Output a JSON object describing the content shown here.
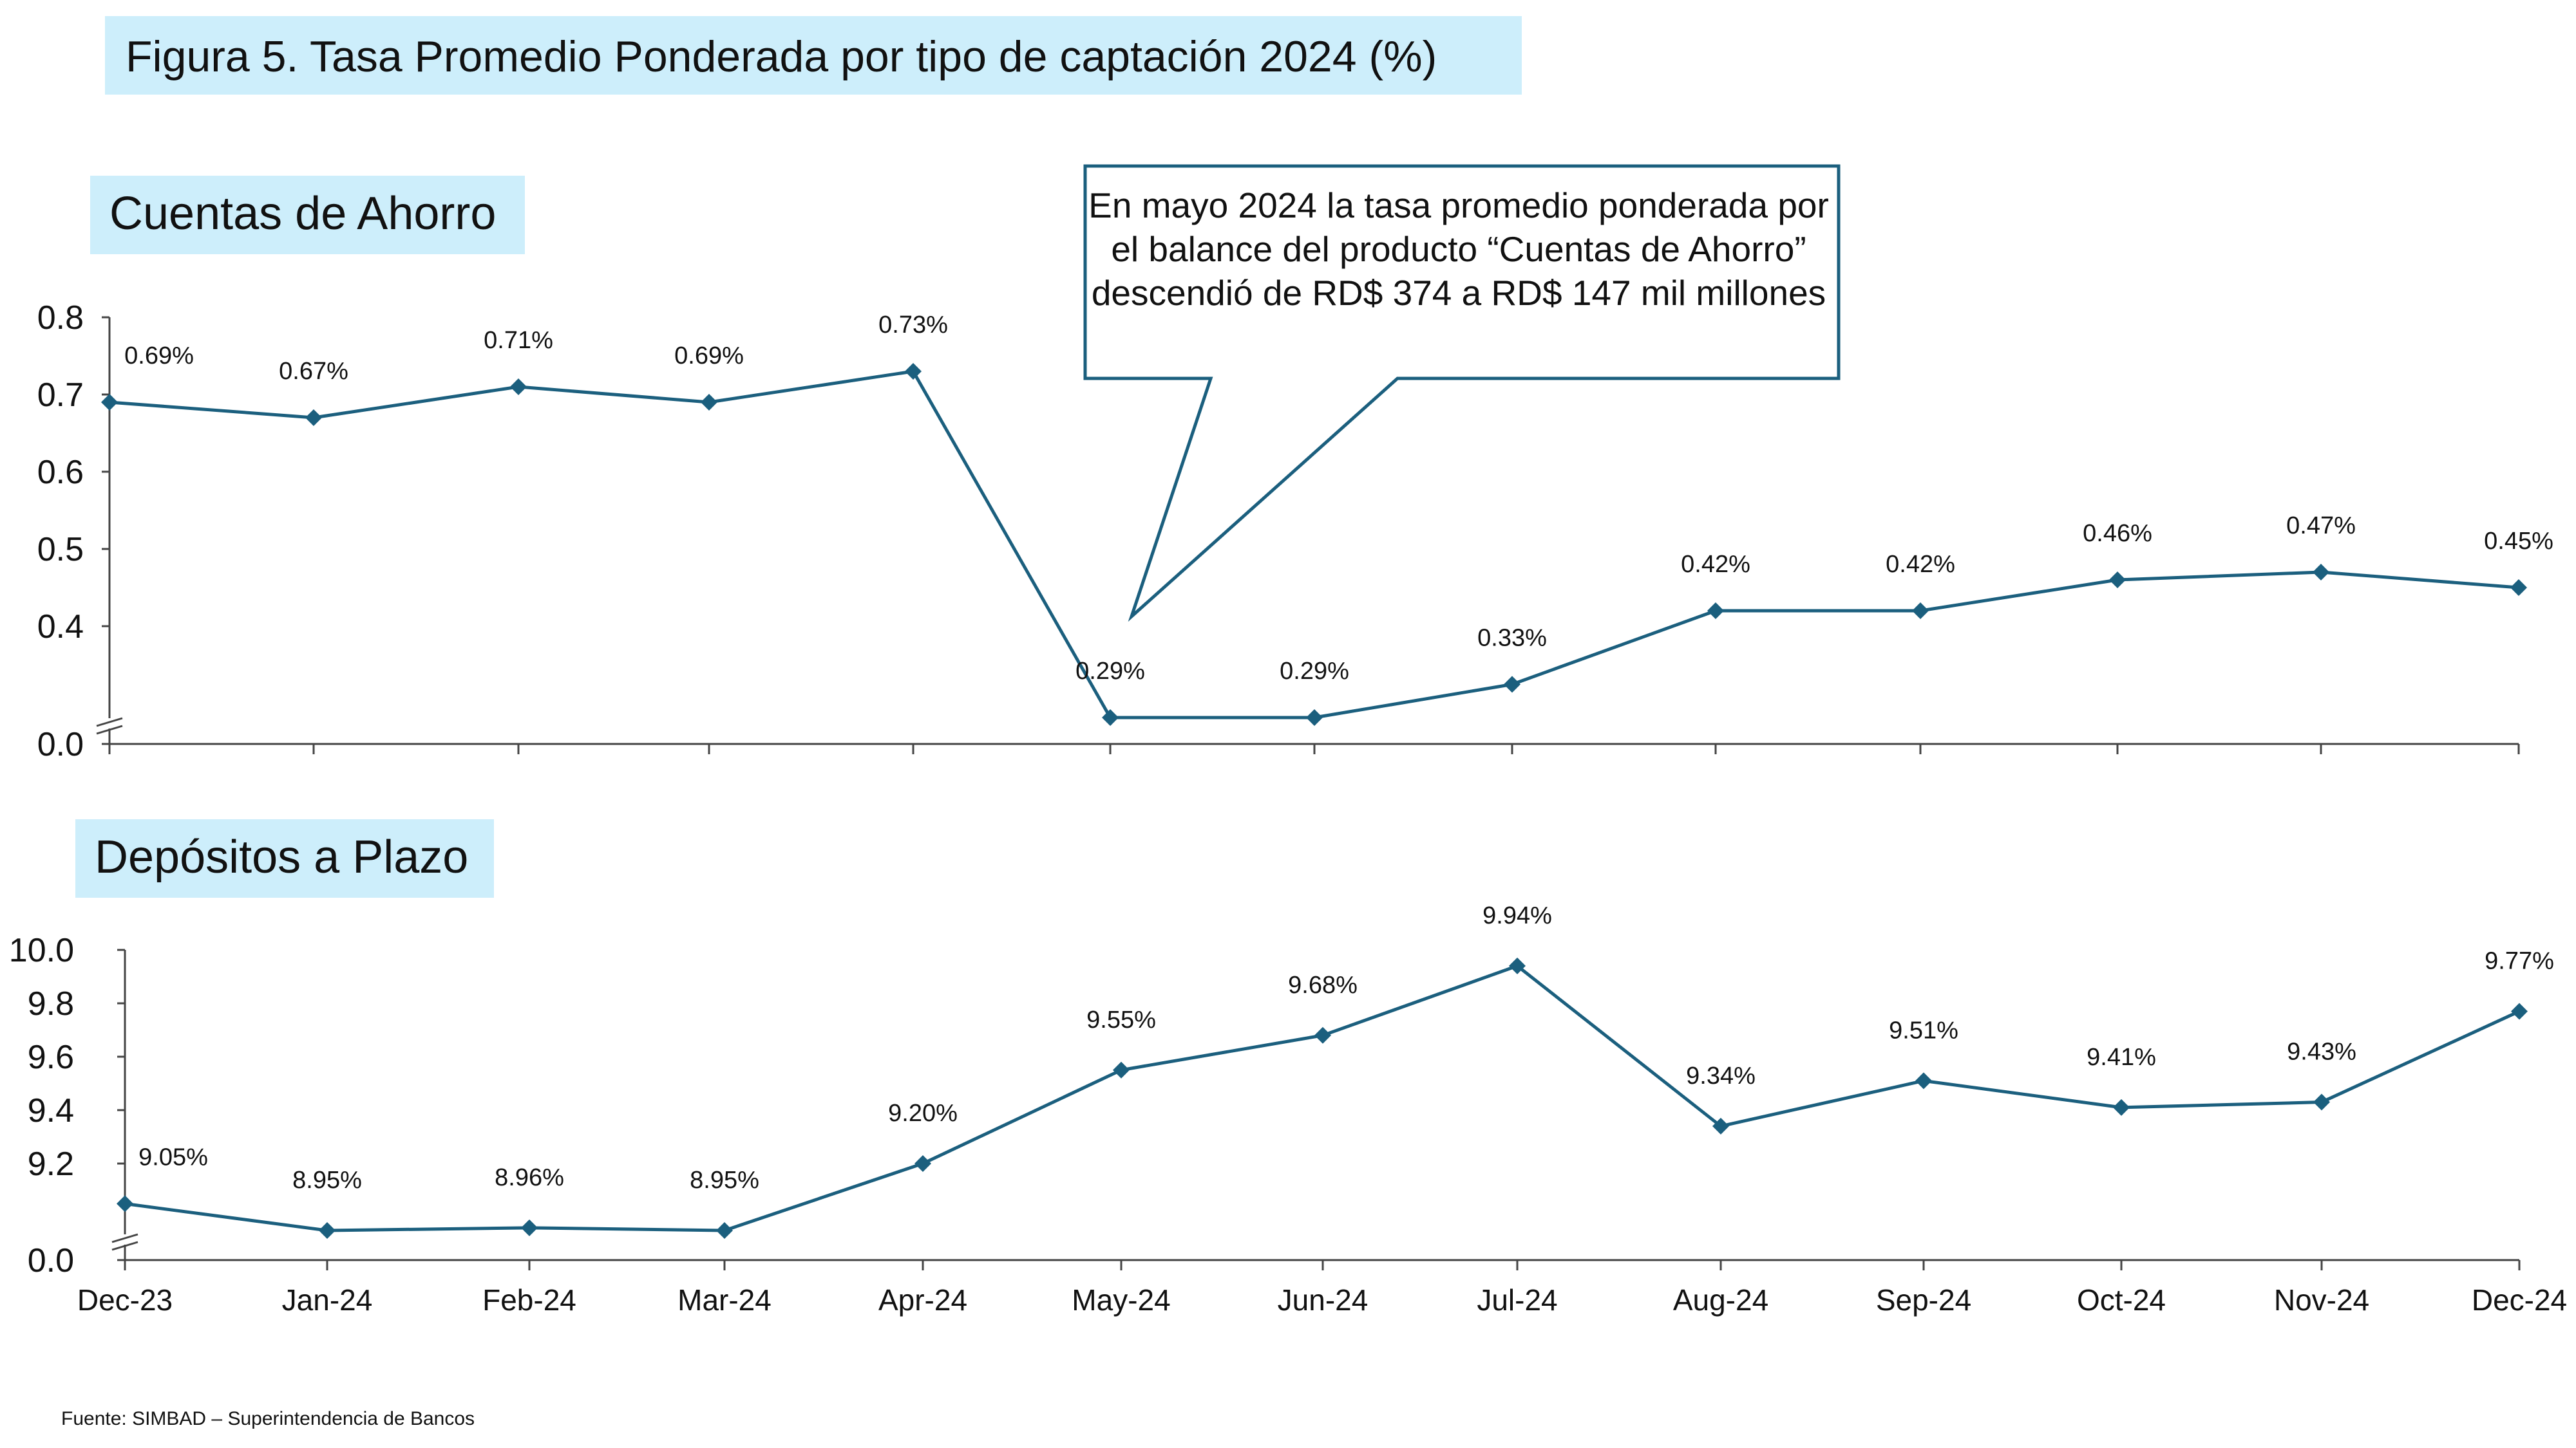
{
  "title": "Figura 5. Tasa Promedio Ponderada por tipo de captación 2024 (%)",
  "source": "Fuente: SIMBAD – Superintendencia de Bancos",
  "callout": {
    "text": "En mayo 2024 la tasa promedio ponderada por el balance del producto “Cuentas de Ahorro” descendió de RD$ 374 a RD$ 147 mil millones"
  },
  "colors": {
    "line": "#1b5f7e",
    "label_bg": "#cdeefb",
    "callout_border": "#1b5f7e"
  },
  "chart_data": [
    {
      "type": "line",
      "title": "Cuentas de Ahorro",
      "categories": [
        "Dec-23",
        "Jan-24",
        "Feb-24",
        "Mar-24",
        "Apr-24",
        "May-24",
        "Jun-24",
        "Jul-24",
        "Aug-24",
        "Sep-24",
        "Oct-24",
        "Nov-24",
        "Dec-24"
      ],
      "series": [
        {
          "values": [
            0.69,
            0.67,
            0.71,
            0.69,
            0.73,
            0.29,
            0.29,
            0.33,
            0.42,
            0.42,
            0.46,
            0.47,
            0.45
          ],
          "labels": [
            "0.69%",
            "0.67%",
            "0.71%",
            "0.69%",
            "0.73%",
            "0.29%",
            "0.29%",
            "0.33%",
            "0.42%",
            "0.42%",
            "0.46%",
            "0.47%",
            "0.45%"
          ]
        }
      ],
      "yticks": [
        "0.0",
        "0.4",
        "0.5",
        "0.6",
        "0.7",
        "0.8"
      ],
      "ylim": [
        0.0,
        0.8
      ],
      "axis_break": true,
      "grid": false,
      "show_xticklabels": false
    },
    {
      "type": "line",
      "title": "Depósitos a Plazo",
      "categories": [
        "Dec-23",
        "Jan-24",
        "Feb-24",
        "Mar-24",
        "Apr-24",
        "May-24",
        "Jun-24",
        "Jul-24",
        "Aug-24",
        "Sep-24",
        "Oct-24",
        "Nov-24",
        "Dec-24"
      ],
      "series": [
        {
          "values": [
            9.05,
            8.95,
            8.96,
            8.95,
            9.2,
            9.55,
            9.68,
            9.94,
            9.34,
            9.51,
            9.41,
            9.43,
            9.77
          ],
          "labels": [
            "9.05%",
            "8.95%",
            "8.96%",
            "8.95%",
            "9.20%",
            "9.55%",
            "9.68%",
            "9.94%",
            "9.34%",
            "9.51%",
            "9.41%",
            "9.43%",
            "9.77%"
          ]
        }
      ],
      "yticks": [
        "0.0",
        "9.2",
        "9.4",
        "9.6",
        "9.8",
        "10.0"
      ],
      "ylim": [
        0.0,
        10.0
      ],
      "axis_break": true,
      "grid": false,
      "show_xticklabels": true
    }
  ]
}
